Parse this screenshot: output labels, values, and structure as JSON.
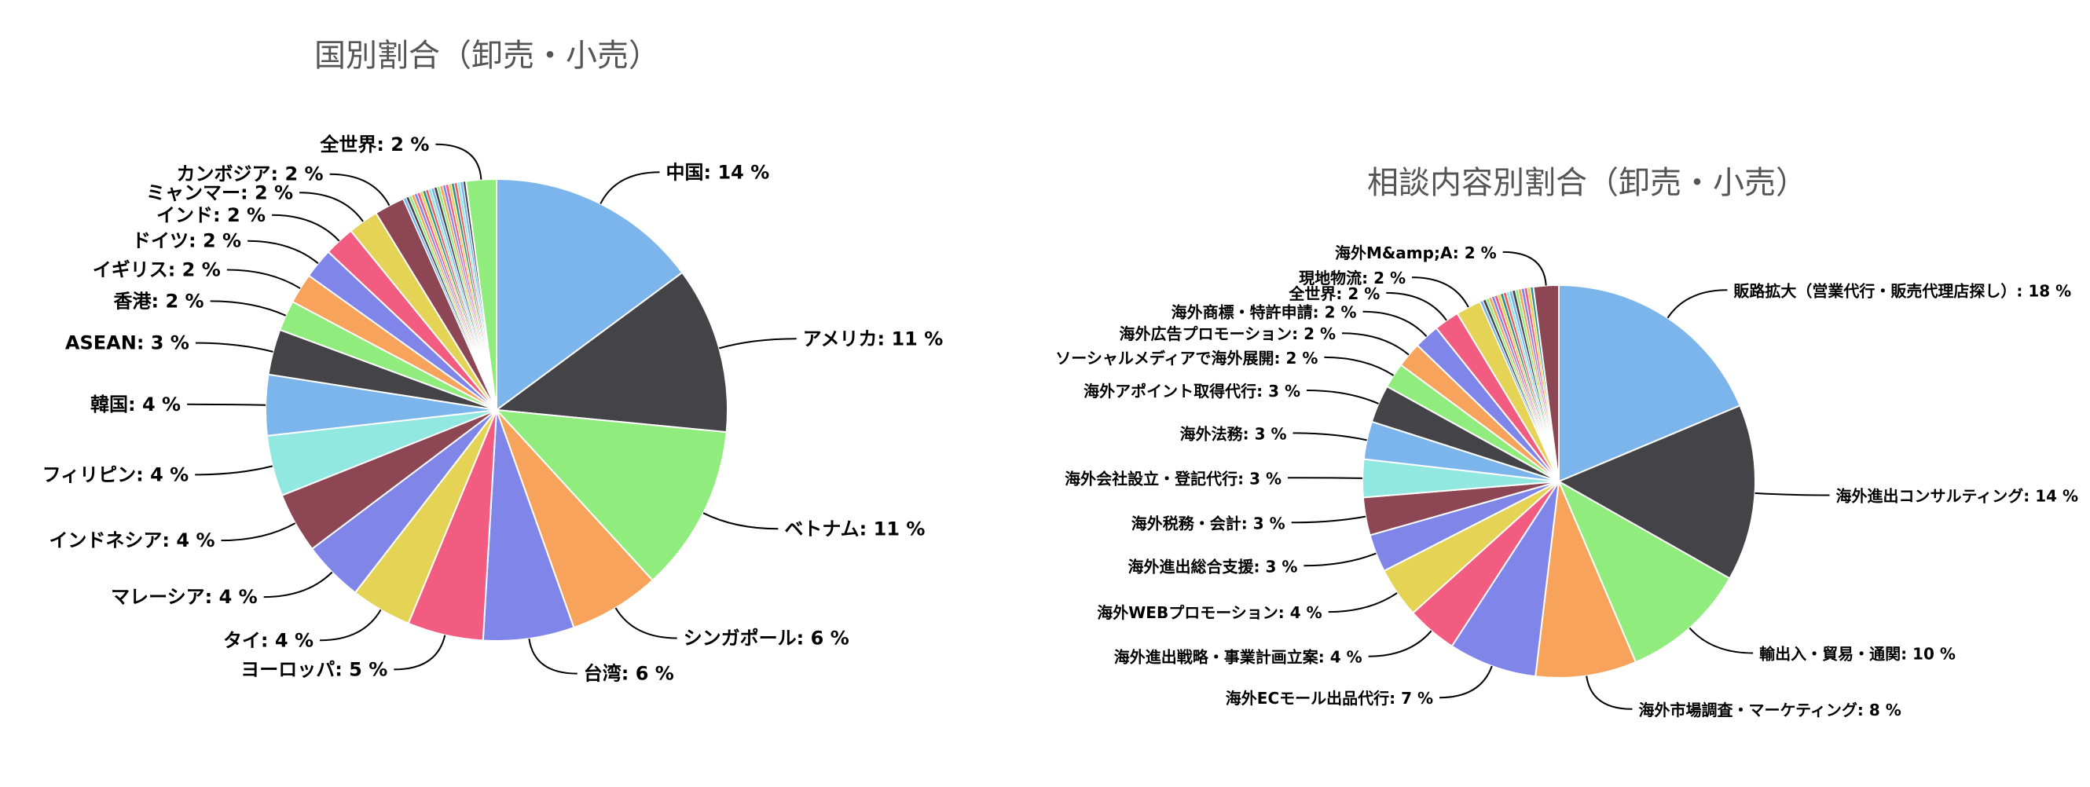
{
  "chart_data": [
    {
      "type": "pie",
      "title": "国別割合（卸売・小売）",
      "labels": [
        "中国",
        "アメリカ",
        "ベトナム",
        "シンガポール",
        "台湾",
        "ヨーロッパ",
        "タイ",
        "マレーシア",
        "インドネシア",
        "フィリピン",
        "韓国",
        "ASEAN",
        "香港",
        "イギリス",
        "ドイツ",
        "インド",
        "ミャンマー",
        "カンボジア",
        "全世界"
      ],
      "values": [
        14,
        11,
        11,
        6,
        6,
        5,
        4,
        4,
        4,
        4,
        4,
        3,
        2,
        2,
        2,
        2,
        2,
        2,
        2
      ],
      "value_labels": [
        "中国: 14 %",
        "アメリカ: 11 %",
        "ベトナム: 11 %",
        "シンガポール: 6 %",
        "台湾: 6 %",
        "ヨーロッパ: 5 %",
        "タイ: 4 %",
        "マレーシア: 4 %",
        "インドネシア: 4 %",
        "フィリピン: 4 %",
        "韓国: 4 %",
        "ASEAN: 3 %",
        "香港: 2 %",
        "イギリス: 2 %",
        "ドイツ: 2 %",
        "インド: 2 %",
        "ミャンマー: 2 %",
        "カンボジア: 2 %",
        "全世界: 2 %"
      ],
      "colors": [
        "#7cb5ec",
        "#434348",
        "#90ed7d",
        "#f7a35c",
        "#8085e9",
        "#f15c80",
        "#e4d354",
        "#8085e8",
        "#8d4653",
        "#91e8e1",
        "#7cb5ec",
        "#434348",
        "#90ed7d",
        "#f7a35c",
        "#8085e9",
        "#f15c80",
        "#e4d354",
        "#8d4653",
        "#90ed7d"
      ],
      "unlabeled_slivers": 22
    },
    {
      "type": "pie",
      "title": "相談内容別割合（卸売・小売）",
      "labels": [
        "販路拡大（営業代行・販売代理店探し）",
        "海外進出コンサルティング",
        "輸出入・貿易・通関",
        "海外市場調査・マーケティング",
        "海外ECモール出品代行",
        "海外進出戦略・事業計画立案",
        "海外WEBプロモーション",
        "海外進出総合支援",
        "海外税務・会計",
        "海外会社設立・登記代行",
        "海外法務",
        "海外アポイント取得代行",
        "ソーシャルメディアで海外展開",
        "海外広告プロモーション",
        "海外商標・特許申請",
        "全世界",
        "現地物流",
        "海外M&amp;A"
      ],
      "values": [
        18,
        14,
        10,
        8,
        7,
        4,
        4,
        3,
        3,
        3,
        3,
        3,
        2,
        2,
        2,
        2,
        2,
        2
      ],
      "value_labels": [
        "販路拡大（営業代行・販売代理店探し）: 18 %",
        "海外進出コンサルティング: 14 %",
        "輸出入・貿易・通関: 10 %",
        "海外市場調査・マーケティング: 8 %",
        "海外ECモール出品代行: 7 %",
        "海外進出戦略・事業計画立案: 4 %",
        "海外WEBプロモーション: 4 %",
        "海外進出総合支援: 3 %",
        "海外税務・会計: 3 %",
        "海外会社設立・登記代行: 3 %",
        "海外法務: 3 %",
        "海外アポイント取得代行: 3 %",
        "ソーシャルメディアで海外展開: 2 %",
        "海外広告プロモーション: 2 %",
        "海外商標・特許申請: 2 %",
        "全世界: 2 %",
        "現地物流: 2 %",
        "海外M&amp;A: 2 %"
      ],
      "colors": [
        "#7cb5ec",
        "#434348",
        "#90ed7d",
        "#f7a35c",
        "#8085e9",
        "#f15c80",
        "#e4d354",
        "#8085e8",
        "#8d4653",
        "#91e8e1",
        "#7cb5ec",
        "#434348",
        "#90ed7d",
        "#f7a35c",
        "#8085e9",
        "#f15c80",
        "#e4d354",
        "#8d4653"
      ],
      "unlabeled_slivers": 18
    }
  ]
}
